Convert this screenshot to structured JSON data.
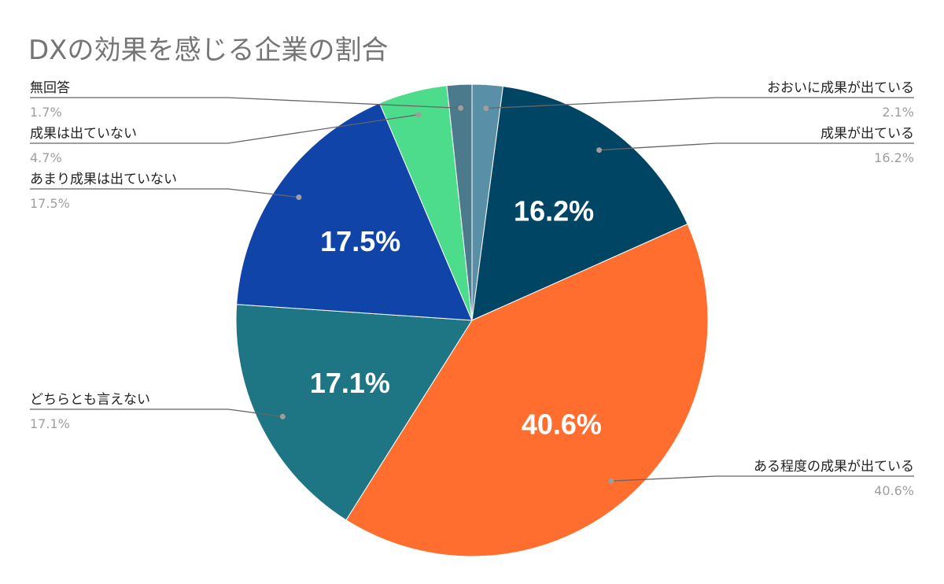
{
  "chart_data": {
    "type": "pie",
    "title": "DXの効果を感じる企業の割合",
    "slices": [
      {
        "label": "おおいに成果が出ている",
        "value": 2.1,
        "value_label": "2.1%",
        "color": "#5a8fa8",
        "show_inside": false
      },
      {
        "label": "成果が出ている",
        "value": 16.2,
        "value_label": "16.2%",
        "color": "#004564",
        "show_inside": true
      },
      {
        "label": "ある程度の成果が出ている",
        "value": 40.6,
        "value_label": "40.6%",
        "color": "#ff6d2f",
        "show_inside": true
      },
      {
        "label": "どちらとも言えない",
        "value": 17.1,
        "value_label": "17.1%",
        "color": "#1e7685",
        "show_inside": true
      },
      {
        "label": "あまり成果は出ていない",
        "value": 17.5,
        "value_label": "17.5%",
        "color": "#1044a8",
        "show_inside": true
      },
      {
        "label": "成果は出ていない",
        "value": 4.7,
        "value_label": "4.7%",
        "color": "#4cdc8c",
        "show_inside": false
      },
      {
        "label": "無回答",
        "value": 1.7,
        "value_label": "1.7%",
        "color": "#4a7a8c",
        "show_inside": false
      }
    ],
    "legend": "callouts-left-right"
  }
}
